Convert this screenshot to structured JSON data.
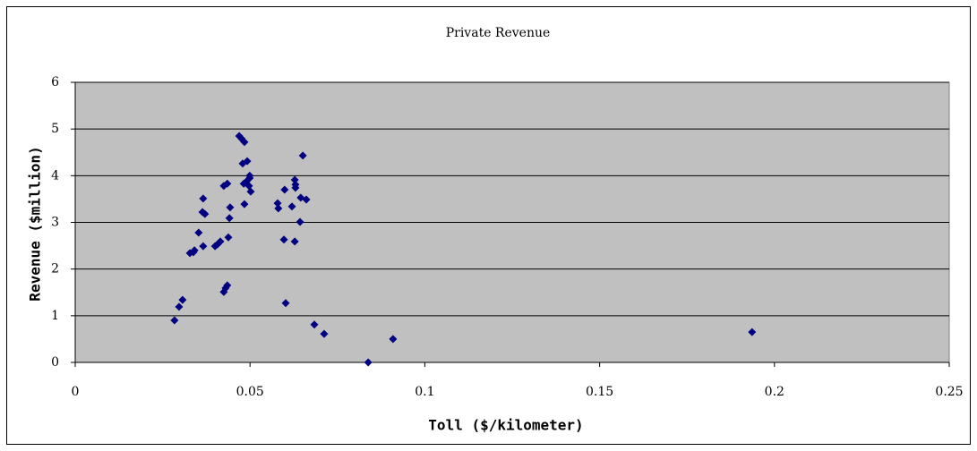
{
  "chart_data": {
    "type": "scatter",
    "title": "Private Revenue",
    "x_label": "Toll ($/kilometer)",
    "y_label": "Revenue ($million)",
    "x": [
      0.0284,
      0.0297,
      0.0307,
      0.0328,
      0.0338,
      0.0341,
      0.0353,
      0.0366,
      0.0364,
      0.0371,
      0.0366,
      0.04,
      0.0407,
      0.0415,
      0.0425,
      0.043,
      0.0435,
      0.0425,
      0.0435,
      0.0438,
      0.0441,
      0.0443,
      0.0469,
      0.0476,
      0.0484,
      0.0479,
      0.0492,
      0.0482,
      0.0489,
      0.0497,
      0.0484,
      0.0499,
      0.0499,
      0.0502,
      0.0579,
      0.0581,
      0.0597,
      0.0599,
      0.0602,
      0.062,
      0.0628,
      0.063,
      0.063,
      0.0628,
      0.0643,
      0.0645,
      0.0661,
      0.0651,
      0.0684,
      0.0712,
      0.0838,
      0.0909,
      0.1936
    ],
    "series": [
      {
        "color": "#000080",
        "values": [
          0.9,
          1.19,
          1.34,
          2.34,
          2.36,
          2.4,
          2.78,
          3.51,
          3.22,
          3.18,
          2.49,
          2.49,
          2.53,
          2.59,
          1.51,
          1.59,
          1.65,
          3.78,
          3.83,
          2.68,
          3.09,
          3.32,
          4.85,
          4.79,
          4.72,
          4.26,
          4.31,
          3.83,
          3.87,
          3.78,
          3.39,
          4.0,
          3.95,
          3.66,
          3.41,
          3.3,
          2.63,
          3.7,
          1.27,
          3.34,
          3.91,
          3.81,
          3.74,
          2.59,
          3.01,
          3.53,
          3.49,
          4.43,
          0.81,
          0.61,
          0,
          0.5,
          0.65
        ]
      }
    ],
    "xlim": [
      0,
      0.25
    ],
    "xticks": [
      0,
      0.05,
      0.1,
      0.15,
      0.2,
      0.25
    ],
    "ylim": [
      0,
      6
    ],
    "yticks": [
      0,
      1,
      2,
      3,
      4,
      5,
      6
    ],
    "grid": true,
    "plot_background": "#c0c0c0"
  }
}
